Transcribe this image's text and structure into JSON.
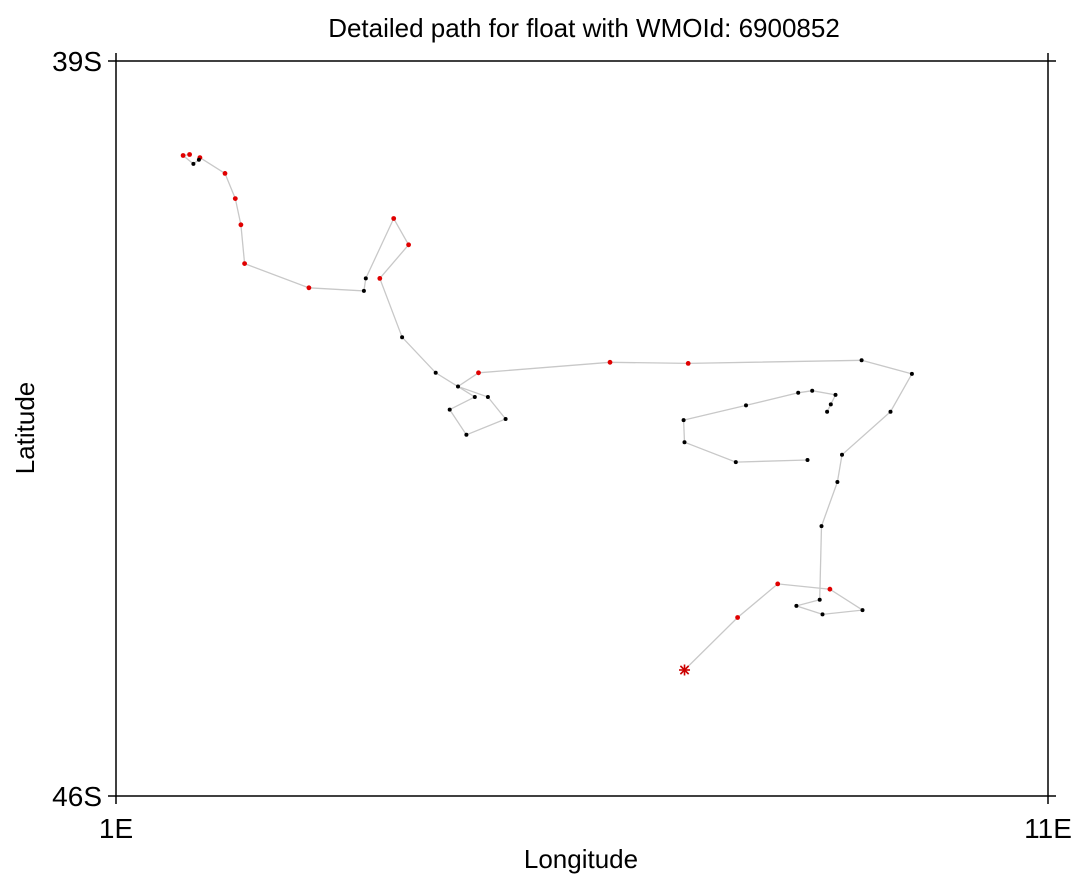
{
  "chart_data": {
    "type": "scatter",
    "title": "Detailed path for float with WMOId: 6900852",
    "xlabel": "Longitude",
    "ylabel": "Latitude",
    "xlim": [
      1,
      11
    ],
    "ylim": [
      -46,
      -39
    ],
    "x_ticks": [
      {
        "value": 1,
        "label": "1E"
      },
      {
        "value": 11,
        "label": "11E"
      }
    ],
    "y_ticks": [
      {
        "value": -39,
        "label": "39S"
      },
      {
        "value": -46,
        "label": "46S"
      }
    ],
    "grid": false,
    "legend": "none",
    "colors": {
      "track": "#c8c8c8",
      "red_point": "#e00000",
      "black_point": "#000000",
      "start_marker": "#cc0000"
    },
    "start": {
      "x": 7.1,
      "y": -44.8
    },
    "track": [
      {
        "x": 7.1,
        "y": -44.8,
        "c": "red"
      },
      {
        "x": 7.67,
        "y": -44.3,
        "c": "red"
      },
      {
        "x": 8.1,
        "y": -43.98,
        "c": "red"
      },
      {
        "x": 8.66,
        "y": -44.03,
        "c": "red"
      },
      {
        "x": 9.01,
        "y": -44.23,
        "c": "black"
      },
      {
        "x": 8.58,
        "y": -44.27,
        "c": "black"
      },
      {
        "x": 8.3,
        "y": -44.19,
        "c": "black"
      },
      {
        "x": 8.55,
        "y": -44.13,
        "c": "black"
      },
      {
        "x": 8.57,
        "y": -43.43,
        "c": "black"
      },
      {
        "x": 8.74,
        "y": -43.01,
        "c": "black"
      },
      {
        "x": 8.79,
        "y": -42.75,
        "c": "black"
      },
      {
        "x": 9.31,
        "y": -42.34,
        "c": "black"
      },
      {
        "x": 9.54,
        "y": -41.98,
        "c": "black"
      },
      {
        "x": 9.0,
        "y": -41.85,
        "c": "black"
      },
      {
        "x": 7.14,
        "y": -41.88,
        "c": "red"
      },
      {
        "x": 6.3,
        "y": -41.87,
        "c": "red"
      },
      {
        "x": 4.89,
        "y": -41.97,
        "c": "red"
      },
      {
        "x": 4.67,
        "y": -42.1,
        "c": "black"
      },
      {
        "x": 4.99,
        "y": -42.2,
        "c": "black"
      },
      {
        "x": 5.18,
        "y": -42.41,
        "c": "black"
      },
      {
        "x": 4.76,
        "y": -42.56,
        "c": "black"
      },
      {
        "x": 4.58,
        "y": -42.32,
        "c": "black"
      },
      {
        "x": 4.85,
        "y": -42.2,
        "c": "black"
      },
      {
        "x": 4.43,
        "y": -41.97,
        "c": "black"
      },
      {
        "x": 4.07,
        "y": -41.63,
        "c": "black"
      },
      {
        "x": 3.83,
        "y": -41.07,
        "c": "red"
      },
      {
        "x": 4.14,
        "y": -40.75,
        "c": "red"
      },
      {
        "x": 3.98,
        "y": -40.5,
        "c": "red"
      },
      {
        "x": 3.68,
        "y": -41.07,
        "c": "black"
      },
      {
        "x": 3.66,
        "y": -41.19,
        "c": "black"
      },
      {
        "x": 3.07,
        "y": -41.16,
        "c": "red"
      },
      {
        "x": 2.38,
        "y": -40.93,
        "c": "red"
      },
      {
        "x": 2.34,
        "y": -40.56,
        "c": "red"
      },
      {
        "x": 2.28,
        "y": -40.31,
        "c": "red"
      },
      {
        "x": 2.17,
        "y": -40.07,
        "c": "red"
      },
      {
        "x": 1.9,
        "y": -39.92,
        "c": "red"
      },
      {
        "x": 1.89,
        "y": -39.94,
        "c": "black"
      },
      {
        "x": 1.83,
        "y": -39.98,
        "c": "black"
      },
      {
        "x": 1.72,
        "y": -39.9,
        "c": "red"
      },
      {
        "x": 1.79,
        "y": -39.89,
        "c": "red"
      }
    ],
    "extra_points": [
      {
        "x": 7.76,
        "y": -42.28,
        "c": "black"
      },
      {
        "x": 7.09,
        "y": -42.42,
        "c": "black"
      },
      {
        "x": 7.1,
        "y": -42.63,
        "c": "black"
      },
      {
        "x": 7.65,
        "y": -42.82,
        "c": "black"
      },
      {
        "x": 8.42,
        "y": -42.8,
        "c": "black"
      },
      {
        "x": 8.32,
        "y": -42.16,
        "c": "black"
      },
      {
        "x": 8.47,
        "y": -42.14,
        "c": "black"
      },
      {
        "x": 8.72,
        "y": -42.18,
        "c": "black"
      },
      {
        "x": 8.67,
        "y": -42.27,
        "c": "black"
      },
      {
        "x": 8.63,
        "y": -42.34,
        "c": "black"
      }
    ],
    "extra_path": [
      [
        0,
        1,
        2,
        3,
        4
      ],
      [
        0,
        5,
        6,
        7,
        8,
        9
      ]
    ]
  }
}
